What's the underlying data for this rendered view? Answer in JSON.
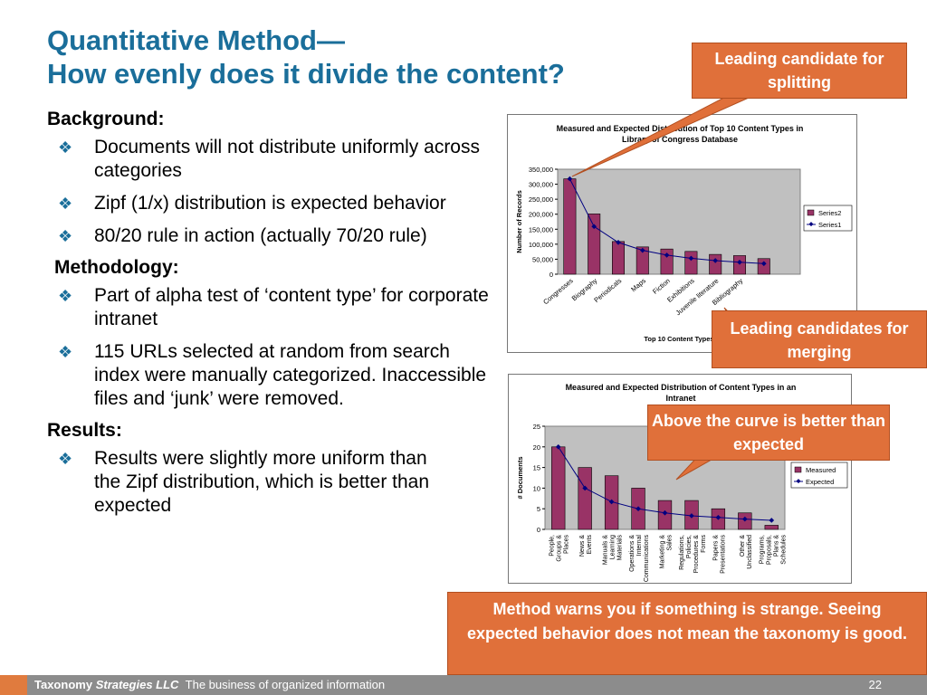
{
  "title": {
    "line1": "Quantitative Method—",
    "line2": "How evenly does it divide the content?"
  },
  "left": {
    "background_heading": "Background:",
    "background_bullets": [
      "Documents will not distribute uniformly across categories",
      "Zipf (1/x) distribution is expected behavior",
      "80/20 rule in action (actually 70/20 rule)"
    ],
    "methodology_heading": "Methodology:",
    "methodology_bullets": [
      "Part of alpha test of ‘content type’ for corporate intranet",
      "115 URLs selected at random from search index were manually categorized. Inaccessible files and ‘junk’ were removed."
    ],
    "results_heading": "Results:",
    "results_bullets": [
      "Results were slightly more uniform than the Zipf distribution, which is better than expected"
    ],
    "bullet_glyph": "❖"
  },
  "callouts": {
    "splitting": "Leading candidate for splitting",
    "merging": "Leading candidates for merging",
    "above_curve": "Above the curve is better than expected",
    "method_warns": "Method warns you if something is strange. Seeing expected behavior does not mean the taxonomy is good."
  },
  "footer": {
    "company_plain": "Taxonomy",
    "company_italic": "Strategies LLC",
    "tagline": "The business of organized information",
    "page_number": "22"
  },
  "colors": {
    "title": "#1a6e9a",
    "bar": "#993366",
    "line": "#000080",
    "callout": "#e0703a",
    "plot_bg": "#c0c0c0"
  },
  "chart_data": [
    {
      "type": "bar",
      "title": "Measured and Expected Distribution of Top 10 Content Types in Library of Congress Database",
      "xlabel": "Top 10 Content Types",
      "ylabel": "Number of Records",
      "categories": [
        "Congresses",
        "Biography",
        "Periodicals",
        "Maps",
        "Fiction",
        "Exhibitions",
        "Juvenile literature",
        "Bibliography",
        "",
        ""
      ],
      "series": [
        {
          "name": "Series2",
          "kind": "bar",
          "values": [
            318000,
            201000,
            109000,
            91000,
            84000,
            76000,
            66000,
            62000,
            52000,
            0
          ]
        },
        {
          "name": "Series1",
          "kind": "line",
          "values": [
            318000,
            159000,
            106000,
            79500,
            63600,
            53000,
            45400,
            39800,
            35300,
            0
          ]
        }
      ],
      "ylim": [
        0,
        350000
      ],
      "yticks": [
        "0",
        "50,000",
        "100,000",
        "150,000",
        "200,000",
        "250,000",
        "300,000",
        "350,000"
      ],
      "legend": "right",
      "grid": false
    },
    {
      "type": "bar",
      "title": "Measured and Expected Distribution of Content Types in an Intranet",
      "xlabel": "",
      "ylabel": "# Documents",
      "categories": [
        "People, Groups & Places",
        "News & Events",
        "Manuals & Learning Materials",
        "Operations & Internal Communications",
        "Marketing & Sales",
        "Regulations, Policies, Procedures & Forms",
        "Papers & Presentations",
        "Other & Unclassified",
        "Programs, Proposals, Plans & Schedules"
      ],
      "series": [
        {
          "name": "Measured",
          "kind": "bar",
          "values": [
            20,
            15,
            13,
            10,
            7,
            7,
            5,
            4,
            1
          ]
        },
        {
          "name": "Expected",
          "kind": "line",
          "values": [
            20,
            10,
            6.7,
            5,
            4,
            3.3,
            2.9,
            2.5,
            2.2
          ]
        }
      ],
      "ylim": [
        0,
        25
      ],
      "yticks": [
        "0",
        "5",
        "10",
        "15",
        "20",
        "25"
      ],
      "legend": "right",
      "grid": false
    }
  ]
}
